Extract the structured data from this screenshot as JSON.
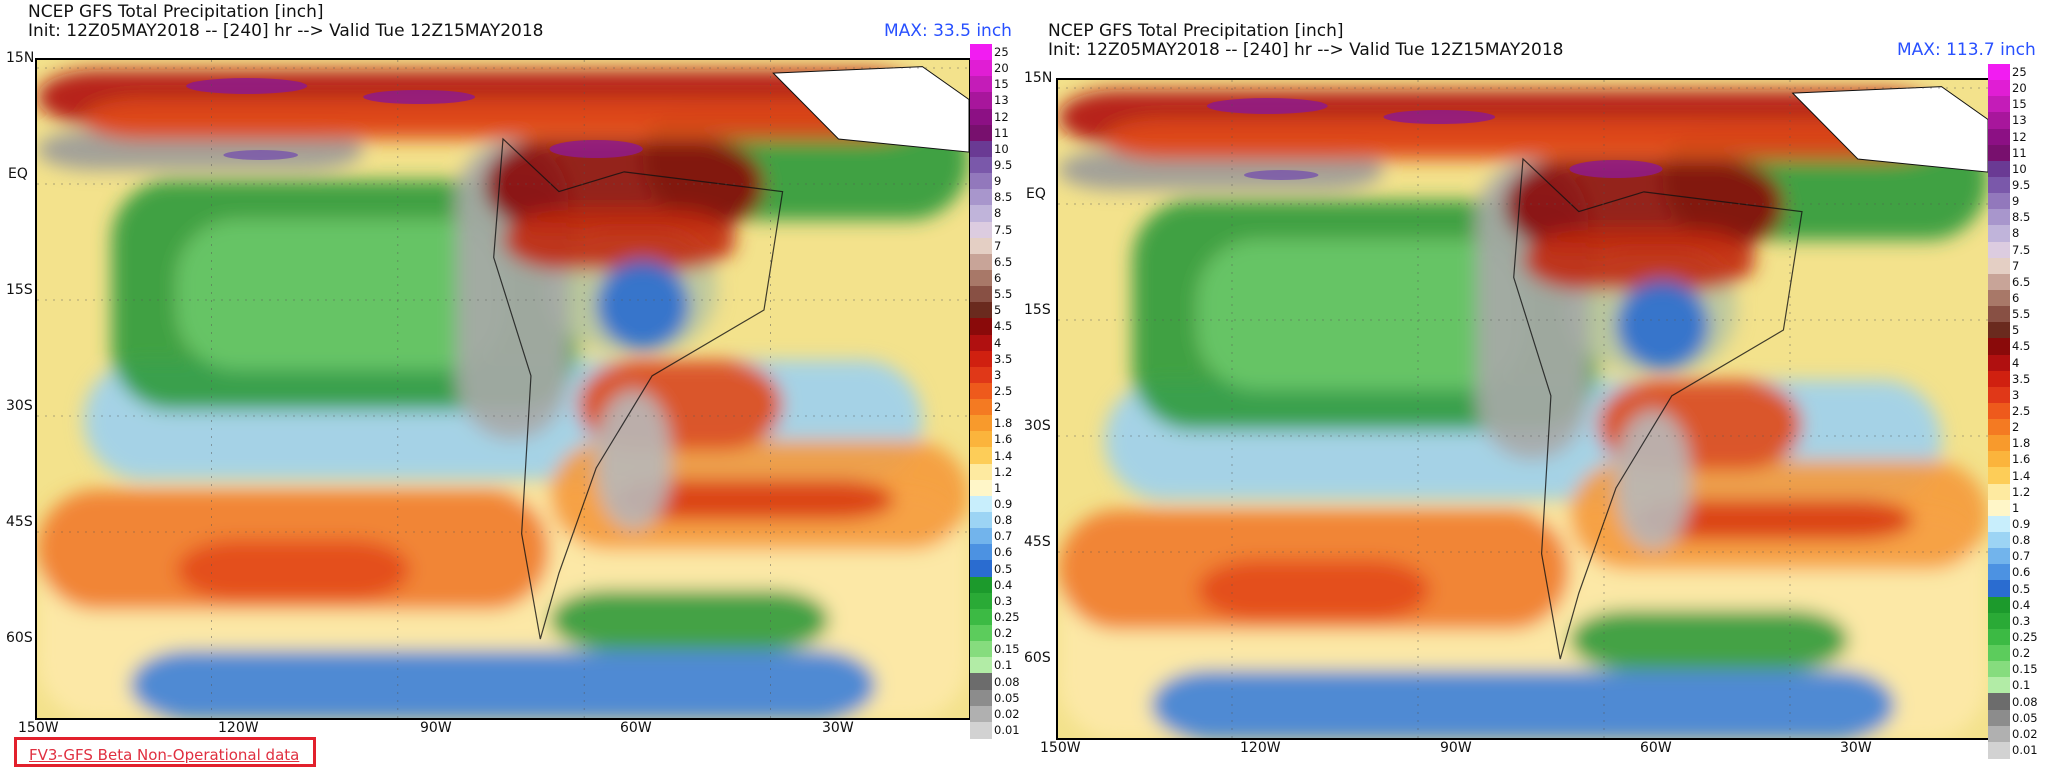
{
  "panels": [
    {
      "title_line1": "NCEP GFS Total Precipitation [inch]",
      "title_line2": "Init: 12Z05MAY2018 -- [240] hr --> Valid Tue 12Z15MAY2018",
      "max_label": "MAX: 33.5 inch",
      "lat_labels": [
        "15N",
        "EQ",
        "15S",
        "30S",
        "45S",
        "60S"
      ],
      "lon_labels": [
        "150W",
        "120W",
        "90W",
        "60W",
        "30W"
      ]
    },
    {
      "title_line1": "NCEP GFS Total Precipitation [inch]",
      "title_line2": "Init: 12Z05MAY2018 -- [240] hr --> Valid Tue 12Z15MAY2018",
      "max_label": "MAX: 113.7 inch",
      "lat_labels": [
        "15N",
        "EQ",
        "15S",
        "30S",
        "45S",
        "60S"
      ],
      "lon_labels": [
        "150W",
        "120W",
        "90W",
        "60W",
        "30W"
      ]
    }
  ],
  "legend": {
    "levels": [
      "25",
      "20",
      "15",
      "13",
      "12",
      "11",
      "10",
      "9.5",
      "9",
      "8.5",
      "8",
      "7.5",
      "7",
      "6.5",
      "6",
      "5.5",
      "5",
      "4.5",
      "4",
      "3.5",
      "3",
      "2.5",
      "2",
      "1.8",
      "1.6",
      "1.4",
      "1.2",
      "1",
      "0.9",
      "0.8",
      "0.7",
      "0.6",
      "0.5",
      "0.4",
      "0.3",
      "0.25",
      "0.2",
      "0.15",
      "0.1",
      "0.08",
      "0.05",
      "0.02",
      "0.01"
    ],
    "colors": [
      "#f21cf2",
      "#e01ed4",
      "#c41cb8",
      "#a8169c",
      "#8c1084",
      "#78106e",
      "#6a3a94",
      "#7a58aa",
      "#9278bc",
      "#a896cc",
      "#c0b4da",
      "#dccce0",
      "#e4cfc4",
      "#c8a498",
      "#a87868",
      "#885044",
      "#6a2a1e",
      "#8a0a0a",
      "#b01010",
      "#d02010",
      "#e03818",
      "#ee5a1c",
      "#f47a22",
      "#f89a2c",
      "#fbb43c",
      "#fdcd58",
      "#feeaa0",
      "#fff6c8",
      "#c8eefc",
      "#9cd4f4",
      "#72b4ec",
      "#4c92e2",
      "#2a6cd0",
      "#1c9a2c",
      "#2aaa36",
      "#3cba44",
      "#5ccc5c",
      "#86dc7e",
      "#b2eca6",
      "#6c6c6c",
      "#8c8c8c",
      "#b0b0b0",
      "#d2d2d2"
    ]
  },
  "watermark": "FV3-GFS Beta Non-Operational data",
  "colors": {
    "max_label": "#2850ff",
    "watermark_border": "#e2202c",
    "watermark_text": "#e03040"
  }
}
